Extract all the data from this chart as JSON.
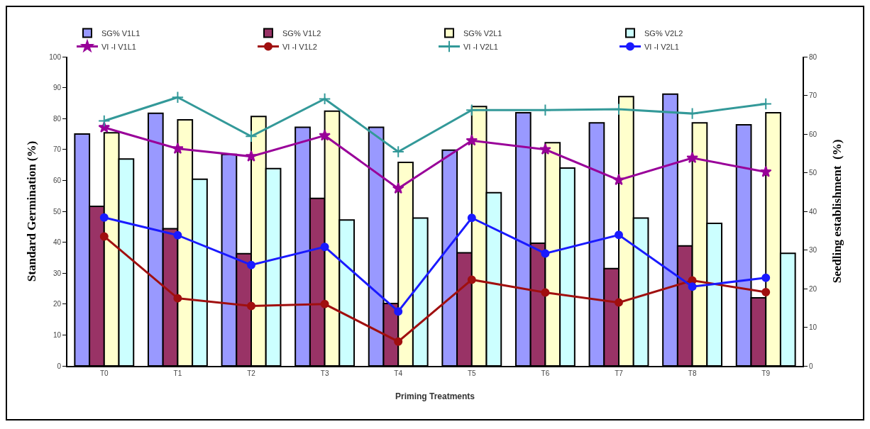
{
  "chart_data": {
    "type": "bar",
    "xlabel": "Priming Treatments",
    "ylabel": "Standard Germination (%)",
    "y2label": "Seedling establishment  (%)",
    "categories": [
      "T0",
      "T1",
      "T2",
      "T3",
      "T4",
      "T5",
      "T6",
      "T7",
      "T8",
      "T9"
    ],
    "series": [
      {
        "name": "SG% V1L1",
        "color": "#9999ff",
        "values": [
          75.0,
          81.7,
          68.4,
          77.2,
          77.2,
          69.8,
          81.9,
          78.6,
          87.9,
          78.0
        ]
      },
      {
        "name": "SG% V1L2",
        "color": "#993366",
        "values": [
          51.6,
          44.4,
          36.3,
          54.2,
          20.2,
          36.6,
          39.7,
          31.5,
          38.8,
          22.0
        ]
      },
      {
        "name": "SG% V2L1",
        "color": "#ffffcc",
        "values": [
          75.4,
          79.6,
          80.7,
          82.4,
          65.8,
          83.9,
          72.2,
          87.1,
          78.6,
          81.9
        ]
      },
      {
        "name": "SG% V2L2",
        "color": "#ccffff",
        "values": [
          66.9,
          60.4,
          63.8,
          47.2,
          47.8,
          56.0,
          64.0,
          47.8,
          46.1,
          36.4
        ]
      },
      {
        "name": "VI -I V1L1",
        "type": "line",
        "axis": "y2",
        "marker": "star",
        "color": "#990099",
        "values": [
          61.7,
          56.2,
          54.2,
          59.6,
          45.9,
          58.3,
          56.0,
          48.1,
          53.8,
          50.2
        ]
      },
      {
        "name": "VI -I V1L2",
        "type": "line",
        "axis": "y2",
        "marker": "circle",
        "color": "#a00f0f",
        "values": [
          33.5,
          17.5,
          15.5,
          16.0,
          6.3,
          22.3,
          19.0,
          16.4,
          22.1,
          19.1
        ]
      },
      {
        "name": "VI -I V2L1",
        "type": "line",
        "axis": "y2",
        "marker": "cross",
        "color": "#339999",
        "values": [
          63.4,
          69.5,
          59.4,
          69.1,
          55.4,
          66.2,
          66.2,
          66.4,
          65.3,
          67.8
        ]
      },
      {
        "name": "VI -I V2L1",
        "type": "line",
        "axis": "y2",
        "marker": "circle",
        "color": "#1a1aff",
        "values": [
          38.4,
          33.8,
          26.1,
          30.8,
          14.1,
          38.3,
          29.1,
          33.9,
          20.5,
          22.8
        ]
      }
    ],
    "ylim": [
      0,
      100
    ],
    "yticks": [
      0,
      10,
      20,
      30,
      40,
      50,
      60,
      70,
      80,
      90,
      100
    ],
    "y2lim": [
      0,
      80
    ],
    "y2ticks": [
      0,
      10,
      20,
      30,
      40,
      50,
      60,
      70,
      80
    ],
    "grid": false,
    "legend": "top"
  }
}
